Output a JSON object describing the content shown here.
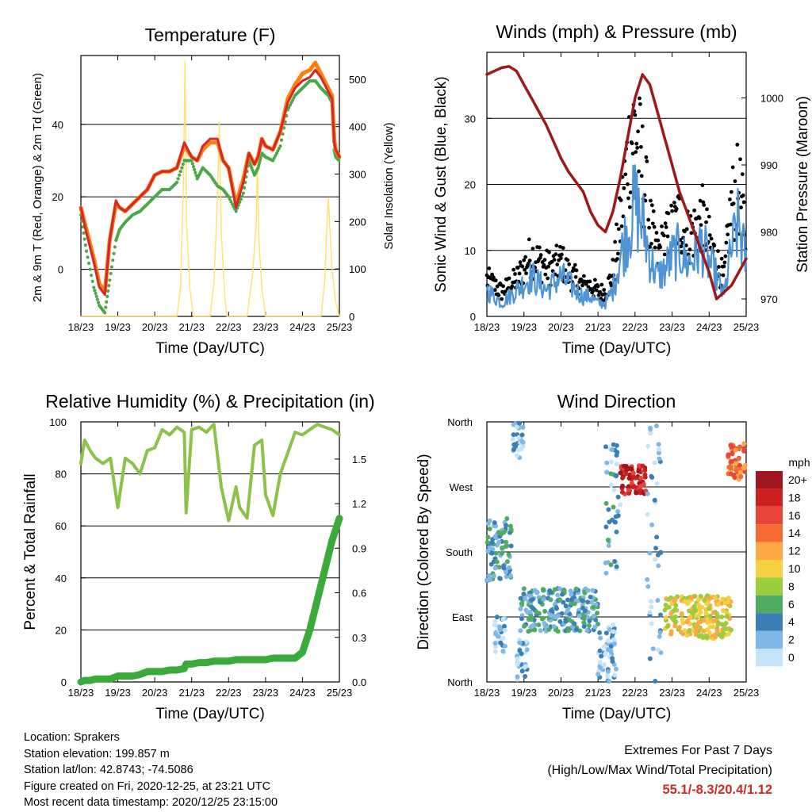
{
  "x_ticks": [
    "18/23",
    "19/23",
    "20/23",
    "21/23",
    "22/23",
    "23/23",
    "24/23",
    "25/23"
  ],
  "chart_data": [
    {
      "type": "line",
      "title": "Temperature (F)",
      "xlabel": "Time (Day/UTC)",
      "ylabel": "2m & 9m T (Red, Orange) & 2m Td (Green)",
      "ylabel_right": "Solar Insolation (Yellow)",
      "ylim": [
        -13,
        59
      ],
      "yticks": [
        0,
        20,
        40
      ],
      "ylim_right": [
        0,
        550
      ],
      "yticks_right": [
        0,
        100,
        200,
        300,
        400,
        500
      ],
      "grid_y": [
        0,
        20,
        40
      ],
      "x": [
        0.0,
        0.15,
        0.35,
        0.5,
        0.65,
        0.78,
        0.95,
        1.05,
        1.2,
        1.4,
        1.6,
        1.8,
        2.0,
        2.2,
        2.4,
        2.6,
        2.8,
        3.0,
        3.15,
        3.3,
        3.5,
        3.7,
        3.85,
        4.0,
        4.2,
        4.4,
        4.55,
        4.7,
        4.8,
        4.9,
        5.0,
        5.2,
        5.4,
        5.6,
        5.8,
        6.0,
        6.2,
        6.35,
        6.5,
        6.6,
        6.7,
        6.8,
        6.86,
        6.9,
        7.0
      ],
      "series": [
        {
          "name": "2m T",
          "color": "#d62728",
          "values": [
            17,
            10,
            2,
            -5,
            -7,
            8,
            19,
            17,
            16,
            18,
            20,
            22,
            26,
            27,
            27,
            28,
            35,
            31,
            30,
            34,
            36,
            36,
            30,
            28,
            17,
            24,
            32,
            29,
            31,
            36,
            34,
            33,
            38,
            46,
            50,
            52,
            53,
            55,
            53,
            51,
            49,
            47,
            35,
            33,
            31
          ]
        },
        {
          "name": "9m T",
          "color": "#ff7f0e",
          "values": [
            17,
            11,
            3,
            -4,
            -6,
            8,
            18,
            17,
            16,
            18,
            20,
            22,
            26,
            27,
            27,
            28,
            34,
            31,
            30,
            33,
            35,
            35,
            30,
            28,
            18,
            25,
            32,
            29,
            31,
            36,
            34,
            33,
            38,
            47,
            51,
            54,
            55,
            57,
            54,
            52,
            50,
            48,
            36,
            33,
            31
          ]
        },
        {
          "name": "2m Td",
          "color": "#4aa84a",
          "values": [
            15,
            5,
            -5,
            -10,
            -12,
            -3,
            8,
            11,
            13,
            15,
            16,
            18,
            20,
            22,
            22,
            24,
            30,
            30,
            25,
            28,
            26,
            23,
            22,
            20,
            16,
            21,
            30,
            26,
            28,
            32,
            31,
            30,
            34,
            44,
            48,
            50,
            52,
            52,
            50,
            49,
            48,
            46,
            33,
            31,
            30
          ]
        },
        {
          "name": "Solar Insolation",
          "color": "#ffe066",
          "axis": "right",
          "x": [
            0.0,
            2.6,
            2.7,
            2.78,
            2.82,
            2.86,
            2.95,
            3.05,
            3.5,
            3.6,
            3.7,
            3.75,
            3.8,
            3.9,
            3.95,
            4.5,
            4.65,
            4.75,
            4.78,
            4.82,
            4.9,
            5.0,
            6.5,
            6.6,
            6.65,
            6.7,
            6.8,
            6.9,
            7.0
          ],
          "values": [
            0,
            0,
            60,
            300,
            540,
            200,
            60,
            0,
            0,
            70,
            250,
            410,
            180,
            40,
            0,
            0,
            90,
            200,
            320,
            160,
            60,
            0,
            0,
            70,
            170,
            250,
            100,
            30,
            0
          ]
        }
      ]
    },
    {
      "type": "line",
      "title": "Winds (mph) & Pressure (mb)",
      "xlabel": "Time (Day/UTC)",
      "ylabel": "Sonic Wind & Gust (Blue, Black)",
      "ylabel_right": "Station Pressure (Maroon)",
      "ylim": [
        0,
        40
      ],
      "yticks": [
        0,
        10,
        20,
        30
      ],
      "ylim_right": [
        967.4,
        1006.8
      ],
      "yticks_right": [
        970,
        980,
        990,
        1000
      ],
      "grid_y": [
        10,
        20,
        30
      ],
      "x": [
        0.0,
        0.2,
        0.4,
        0.6,
        0.8,
        1.0,
        1.2,
        1.4,
        1.6,
        1.8,
        2.0,
        2.2,
        2.4,
        2.6,
        2.8,
        3.0,
        3.2,
        3.4,
        3.6,
        3.8,
        4.0,
        4.2,
        4.4,
        4.6,
        4.8,
        5.0,
        5.2,
        5.4,
        5.6,
        5.8,
        6.0,
        6.2,
        6.4,
        6.6,
        6.8,
        7.0
      ],
      "series": [
        {
          "name": "Sonic Wind",
          "color": "#4f94d4",
          "values": [
            4,
            3,
            2,
            3,
            4,
            5,
            6,
            5,
            4,
            5,
            6,
            5,
            4,
            3,
            3,
            2,
            2,
            4,
            9,
            13,
            17,
            14,
            9,
            6,
            7,
            9,
            10,
            8,
            9,
            11,
            8,
            6,
            3,
            10,
            14,
            8
          ]
        },
        {
          "name": "Gust",
          "color": "#000000",
          "values": [
            6,
            5,
            4,
            5,
            6,
            8,
            10,
            9,
            8,
            8,
            9,
            7,
            6,
            5,
            5,
            4,
            4,
            7,
            15,
            26,
            31,
            24,
            15,
            10,
            12,
            14,
            16,
            13,
            14,
            16,
            12,
            9,
            6,
            18,
            21,
            13
          ]
        },
        {
          "name": "Station Pressure",
          "color": "#9e1a1a",
          "axis": "right",
          "values": [
            1003.5,
            1004,
            1004.5,
            1004.7,
            1004,
            1002,
            1000,
            998,
            996,
            993.5,
            991,
            989,
            987.5,
            986,
            983,
            981,
            980,
            983,
            988,
            994,
            1000,
            1003.5,
            1002,
            998,
            994,
            990,
            986,
            983,
            980,
            977,
            974,
            970,
            971,
            972,
            974,
            976
          ]
        }
      ]
    },
    {
      "type": "line",
      "title": "Relative Humidity (%) & Precipitation (in)",
      "xlabel": "Time (Day/UTC)",
      "ylabel": "Percent & Total Rainfall",
      "ylim": [
        0,
        100
      ],
      "yticks": [
        0,
        20,
        40,
        60,
        80,
        100
      ],
      "ylim_right": [
        0,
        1.75
      ],
      "yticks_right": [
        "0.0",
        "0.3",
        "0.6",
        "0.9",
        "1.2",
        "1.5"
      ],
      "grid_y": [
        20,
        40,
        60,
        80
      ],
      "x": [
        0.0,
        0.1,
        0.25,
        0.4,
        0.6,
        0.8,
        1.0,
        1.2,
        1.4,
        1.6,
        1.8,
        2.0,
        2.2,
        2.4,
        2.6,
        2.8,
        2.85,
        3.0,
        3.2,
        3.4,
        3.6,
        3.8,
        4.0,
        4.2,
        4.3,
        4.5,
        4.7,
        4.9,
        5.0,
        5.2,
        5.4,
        5.6,
        5.8,
        6.0,
        6.2,
        6.4,
        6.6,
        6.8,
        7.0
      ],
      "series": [
        {
          "name": "Relative Humidity",
          "color": "#8bc34a",
          "values": [
            84,
            93,
            89,
            86,
            84,
            86,
            67,
            86,
            84,
            80,
            89,
            90,
            97,
            95,
            98,
            96,
            65,
            97,
            98,
            96,
            99,
            75,
            62,
            75,
            67,
            63,
            91,
            93,
            72,
            64,
            80,
            88,
            96,
            95,
            97,
            99,
            98,
            97,
            95
          ]
        },
        {
          "name": "Total Precipitation",
          "color": "#3aaa3a",
          "axis": "right",
          "values": [
            0.0,
            0.01,
            0.01,
            0.02,
            0.02,
            0.02,
            0.04,
            0.04,
            0.04,
            0.05,
            0.07,
            0.07,
            0.07,
            0.08,
            0.08,
            0.09,
            0.12,
            0.12,
            0.13,
            0.13,
            0.14,
            0.14,
            0.14,
            0.15,
            0.15,
            0.15,
            0.15,
            0.15,
            0.15,
            0.16,
            0.16,
            0.16,
            0.16,
            0.2,
            0.35,
            0.55,
            0.75,
            0.95,
            1.1
          ]
        }
      ]
    },
    {
      "type": "scatter",
      "title": "Wind Direction",
      "xlabel": "Time (Day/UTC)",
      "ylabel": "Direction (Colored By Speed)",
      "yticks": [
        "North",
        "East",
        "South",
        "West",
        "North"
      ],
      "ylim": [
        0,
        360
      ],
      "grid_y": [
        90,
        180,
        270
      ],
      "legend": {
        "title": "mph",
        "placement": "right",
        "labels": [
          "20+",
          "18",
          "16",
          "14",
          "12",
          "10",
          "8",
          "6",
          "4",
          "2",
          "0"
        ],
        "colors": [
          "#a0161e",
          "#cc2020",
          "#e8443a",
          "#f36b30",
          "#fda745",
          "#f5d040",
          "#9acd3e",
          "#4fab62",
          "#3b7fb5",
          "#7fb8e6",
          "#c6e4f7"
        ]
      },
      "clusters": [
        {
          "x_range": [
            0.0,
            0.7
          ],
          "dir_range": [
            140,
            230
          ],
          "speed": 4
        },
        {
          "x_range": [
            0.2,
            0.5
          ],
          "dir_range": [
            40,
            90
          ],
          "speed": 2
        },
        {
          "x_range": [
            0.7,
            1.0
          ],
          "dir_range": [
            310,
            360
          ],
          "speed": 2
        },
        {
          "x_range": [
            0.8,
            1.1
          ],
          "dir_range": [
            0,
            60
          ],
          "speed": 2
        },
        {
          "x_range": [
            0.9,
            3.0
          ],
          "dir_range": [
            70,
            130
          ],
          "speed": 4
        },
        {
          "x_range": [
            3.0,
            3.5
          ],
          "dir_range": [
            0,
            80
          ],
          "speed": 2
        },
        {
          "x_range": [
            3.2,
            3.6
          ],
          "dir_range": [
            150,
            330
          ],
          "speed": 3
        },
        {
          "x_range": [
            3.6,
            4.3
          ],
          "dir_range": [
            260,
            300
          ],
          "speed": 18
        },
        {
          "x_range": [
            4.3,
            4.7
          ],
          "dir_range": [
            0,
            360
          ],
          "speed": 2
        },
        {
          "x_range": [
            4.8,
            6.6
          ],
          "dir_range": [
            60,
            120
          ],
          "speed": 10
        },
        {
          "x_range": [
            6.5,
            7.0
          ],
          "dir_range": [
            280,
            330
          ],
          "speed": 14
        }
      ]
    }
  ],
  "footer": {
    "location": "Location: Sprakers",
    "elevation": "Station elevation: 199.857 m",
    "latlon": "Station lat/lon: 42.8743; -74.5086",
    "created": "Figure created on Fri, 2020-12-25, at 23:21 UTC",
    "latest": "Most recent data timestamp: 2020/12/25 23:15:00",
    "extremes_title": "Extremes For Past 7 Days",
    "extremes_subtitle": "(High/Low/Max Wind/Total Precipitation)",
    "extremes_values": "55.1/-8.3/20.4/1.12",
    "extremes_color": "#cc2a2a"
  }
}
